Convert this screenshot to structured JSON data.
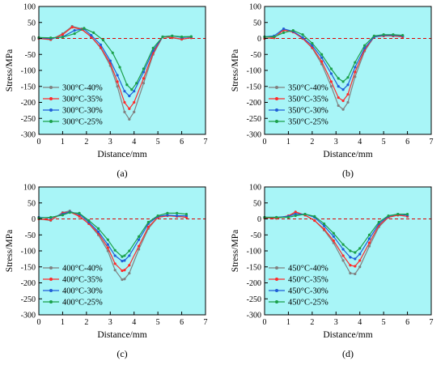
{
  "colors": {
    "plot_background": "#a8f5f7",
    "zero_line": "#dd0000",
    "series": [
      "#808080",
      "#ff2a2a",
      "#1f5ed8",
      "#1aa04a"
    ]
  },
  "chart_data": [
    {
      "type": "line",
      "caption": "(a)",
      "xlabel": "Distance/mm",
      "ylabel": "Stress/MPa",
      "xlim": [
        0,
        7
      ],
      "ylim": [
        -300,
        100
      ],
      "xticks": [
        0,
        1,
        2,
        3,
        4,
        5,
        6,
        7
      ],
      "yticks": [
        100,
        50,
        0,
        -50,
        -100,
        -150,
        -200,
        -250,
        -300
      ],
      "grid": false,
      "legend_position": "lower-left",
      "reference_line": {
        "y": 0,
        "style": "dashed"
      },
      "series": [
        {
          "name": "300°C-40%",
          "x": [
            0,
            0.5,
            1,
            1.4,
            1.8,
            2.2,
            2.6,
            3,
            3.3,
            3.6,
            3.8,
            4,
            4.4,
            4.8,
            5.2,
            5.6,
            6,
            6.4
          ],
          "y": [
            0,
            -4,
            15,
            38,
            30,
            5,
            -30,
            -85,
            -150,
            -230,
            -253,
            -230,
            -140,
            -50,
            5,
            2,
            -3,
            2
          ]
        },
        {
          "name": "300°C-35%",
          "x": [
            0,
            0.5,
            1,
            1.4,
            1.8,
            2.2,
            2.6,
            3,
            3.3,
            3.6,
            3.8,
            4,
            4.4,
            4.8,
            5.2,
            5.6,
            6,
            6.4
          ],
          "y": [
            0,
            -3,
            12,
            35,
            28,
            5,
            -28,
            -78,
            -135,
            -200,
            -220,
            -200,
            -125,
            -45,
            5,
            3,
            -2,
            2
          ]
        },
        {
          "name": "300°C-30%",
          "x": [
            0,
            0.5,
            1,
            1.5,
            1.9,
            2.2,
            2.6,
            3,
            3.3,
            3.6,
            3.8,
            4,
            4.4,
            4.8,
            5.2,
            5.6,
            6,
            6.4
          ],
          "y": [
            2,
            0,
            5,
            25,
            30,
            10,
            -20,
            -70,
            -115,
            -165,
            -180,
            -165,
            -105,
            -38,
            5,
            8,
            3,
            5
          ]
        },
        {
          "name": "300°C-25%",
          "x": [
            0,
            0.5,
            1,
            1.5,
            1.9,
            2.3,
            2.7,
            3.1,
            3.4,
            3.7,
            3.9,
            4.1,
            4.4,
            4.8,
            5.2,
            5.6,
            6,
            6.4
          ],
          "y": [
            3,
            2,
            4,
            15,
            32,
            18,
            -5,
            -45,
            -90,
            -145,
            -160,
            -140,
            -95,
            -30,
            5,
            8,
            5,
            6
          ]
        }
      ]
    },
    {
      "type": "line",
      "caption": "(b)",
      "xlabel": "Distance/mm",
      "ylabel": "Stress/MPa",
      "xlim": [
        0,
        7
      ],
      "ylim": [
        -300,
        100
      ],
      "xticks": [
        0,
        1,
        2,
        3,
        4,
        5,
        6,
        7
      ],
      "yticks": [
        100,
        50,
        0,
        -50,
        -100,
        -150,
        -200,
        -250,
        -300
      ],
      "grid": false,
      "legend_position": "lower-left",
      "reference_line": {
        "y": 0,
        "style": "dashed"
      },
      "series": [
        {
          "name": "350°C-40%",
          "x": [
            0,
            0.4,
            0.8,
            1.2,
            1.6,
            2,
            2.4,
            2.8,
            3.1,
            3.3,
            3.5,
            3.8,
            4.2,
            4.6,
            5,
            5.4,
            5.8
          ],
          "y": [
            0,
            2,
            28,
            22,
            0,
            -30,
            -80,
            -150,
            -210,
            -222,
            -200,
            -120,
            -40,
            5,
            8,
            8,
            5
          ]
        },
        {
          "name": "350°C-35%",
          "x": [
            0,
            0.4,
            0.8,
            1.2,
            1.6,
            2,
            2.4,
            2.8,
            3.1,
            3.3,
            3.5,
            3.8,
            4.2,
            4.6,
            5,
            5.4,
            5.8
          ],
          "y": [
            0,
            2,
            26,
            20,
            0,
            -28,
            -72,
            -135,
            -185,
            -195,
            -175,
            -105,
            -35,
            5,
            8,
            8,
            5
          ]
        },
        {
          "name": "350°C-30%",
          "x": [
            0,
            0.4,
            0.8,
            1.2,
            1.6,
            2,
            2.4,
            2.8,
            3.1,
            3.3,
            3.5,
            3.8,
            4.2,
            4.6,
            5,
            5.4,
            5.8
          ],
          "y": [
            5,
            8,
            30,
            22,
            3,
            -22,
            -60,
            -110,
            -150,
            -160,
            -145,
            -90,
            -30,
            5,
            10,
            10,
            8
          ]
        },
        {
          "name": "350°C-25%",
          "x": [
            0,
            0.4,
            0.8,
            1.2,
            1.6,
            2,
            2.4,
            2.8,
            3.1,
            3.3,
            3.5,
            3.8,
            4.2,
            4.6,
            5,
            5.4,
            5.8
          ],
          "y": [
            5,
            5,
            18,
            25,
            12,
            -15,
            -50,
            -95,
            -125,
            -135,
            -122,
            -75,
            -22,
            8,
            12,
            12,
            10
          ]
        }
      ]
    },
    {
      "type": "line",
      "caption": "(c)",
      "xlabel": "Distance/mm",
      "ylabel": "Stress/MPa",
      "xlim": [
        0,
        7
      ],
      "ylim": [
        -300,
        100
      ],
      "xticks": [
        0,
        1,
        2,
        3,
        4,
        5,
        6,
        7
      ],
      "yticks": [
        100,
        50,
        0,
        -50,
        -100,
        -150,
        -200,
        -250,
        -300
      ],
      "grid": false,
      "legend_position": "lower-left",
      "reference_line": {
        "y": 0,
        "style": "dashed"
      },
      "series": [
        {
          "name": "400°C-40%",
          "x": [
            0,
            0.5,
            1,
            1.3,
            1.7,
            2.1,
            2.5,
            2.9,
            3.2,
            3.5,
            3.6,
            3.8,
            4.2,
            4.6,
            5,
            5.4,
            5.8,
            6.2
          ],
          "y": [
            0,
            -5,
            20,
            25,
            10,
            -15,
            -50,
            -100,
            -160,
            -190,
            -188,
            -170,
            -95,
            -30,
            5,
            10,
            8,
            5
          ]
        },
        {
          "name": "400°C-35%",
          "x": [
            0,
            0.5,
            1,
            1.3,
            1.7,
            2.1,
            2.5,
            2.9,
            3.2,
            3.5,
            3.6,
            3.8,
            4.2,
            4.6,
            5,
            5.4,
            5.8,
            6.2
          ],
          "y": [
            0,
            -3,
            18,
            22,
            8,
            -15,
            -45,
            -90,
            -140,
            -162,
            -160,
            -145,
            -85,
            -25,
            5,
            10,
            8,
            5
          ]
        },
        {
          "name": "400°C-30%",
          "x": [
            0,
            0.5,
            1,
            1.3,
            1.7,
            2.1,
            2.5,
            2.9,
            3.2,
            3.5,
            3.6,
            3.8,
            4.2,
            4.6,
            5,
            5.4,
            5.8,
            6.2
          ],
          "y": [
            5,
            3,
            15,
            22,
            15,
            -10,
            -40,
            -80,
            -115,
            -132,
            -130,
            -115,
            -65,
            -15,
            8,
            12,
            10,
            10
          ]
        },
        {
          "name": "400°C-25%",
          "x": [
            0,
            0.5,
            1,
            1.3,
            1.7,
            2.1,
            2.5,
            2.9,
            3.2,
            3.5,
            3.6,
            3.8,
            4.2,
            4.6,
            5,
            5.4,
            5.8,
            6.2
          ],
          "y": [
            3,
            5,
            12,
            20,
            18,
            -5,
            -30,
            -65,
            -98,
            -118,
            -115,
            -100,
            -55,
            -10,
            10,
            18,
            18,
            15
          ]
        }
      ]
    },
    {
      "type": "line",
      "caption": "(d)",
      "xlabel": "Distance/mm",
      "ylabel": "Stress/MPa",
      "xlim": [
        0,
        7
      ],
      "ylim": [
        -300,
        100
      ],
      "xticks": [
        0,
        1,
        2,
        3,
        4,
        5,
        6,
        7
      ],
      "yticks": [
        100,
        50,
        0,
        -50,
        -100,
        -150,
        -200,
        -250,
        -300
      ],
      "grid": false,
      "legend_position": "lower-left",
      "reference_line": {
        "y": 0,
        "style": "dashed"
      },
      "series": [
        {
          "name": "450°C-40%",
          "x": [
            0,
            0.5,
            1,
            1.3,
            1.7,
            2.1,
            2.5,
            2.9,
            3.3,
            3.6,
            3.8,
            4,
            4.4,
            4.8,
            5.2,
            5.6,
            6
          ],
          "y": [
            3,
            2,
            8,
            20,
            12,
            -5,
            -35,
            -75,
            -130,
            -170,
            -172,
            -150,
            -85,
            -25,
            5,
            12,
            8
          ]
        },
        {
          "name": "450°C-35%",
          "x": [
            0,
            0.5,
            1,
            1.3,
            1.7,
            2.1,
            2.5,
            2.9,
            3.3,
            3.6,
            3.8,
            4,
            4.4,
            4.8,
            5.2,
            5.6,
            6
          ],
          "y": [
            3,
            2,
            10,
            22,
            12,
            -5,
            -32,
            -68,
            -115,
            -145,
            -148,
            -130,
            -75,
            -20,
            5,
            12,
            8
          ]
        },
        {
          "name": "450°C-30%",
          "x": [
            0,
            0.5,
            1,
            1.3,
            1.7,
            2.1,
            2.5,
            2.9,
            3.3,
            3.6,
            3.8,
            4,
            4.4,
            4.8,
            5.2,
            5.6,
            6
          ],
          "y": [
            5,
            5,
            8,
            15,
            15,
            5,
            -22,
            -55,
            -95,
            -120,
            -125,
            -110,
            -62,
            -15,
            8,
            15,
            12
          ]
        },
        {
          "name": "450°C-25%",
          "x": [
            0,
            0.5,
            1,
            1.3,
            1.7,
            2.1,
            2.5,
            2.9,
            3.3,
            3.6,
            3.8,
            4,
            4.4,
            4.8,
            5.2,
            5.6,
            6
          ],
          "y": [
            5,
            5,
            5,
            10,
            15,
            8,
            -15,
            -45,
            -80,
            -100,
            -105,
            -92,
            -50,
            -10,
            10,
            15,
            15
          ]
        }
      ]
    }
  ]
}
